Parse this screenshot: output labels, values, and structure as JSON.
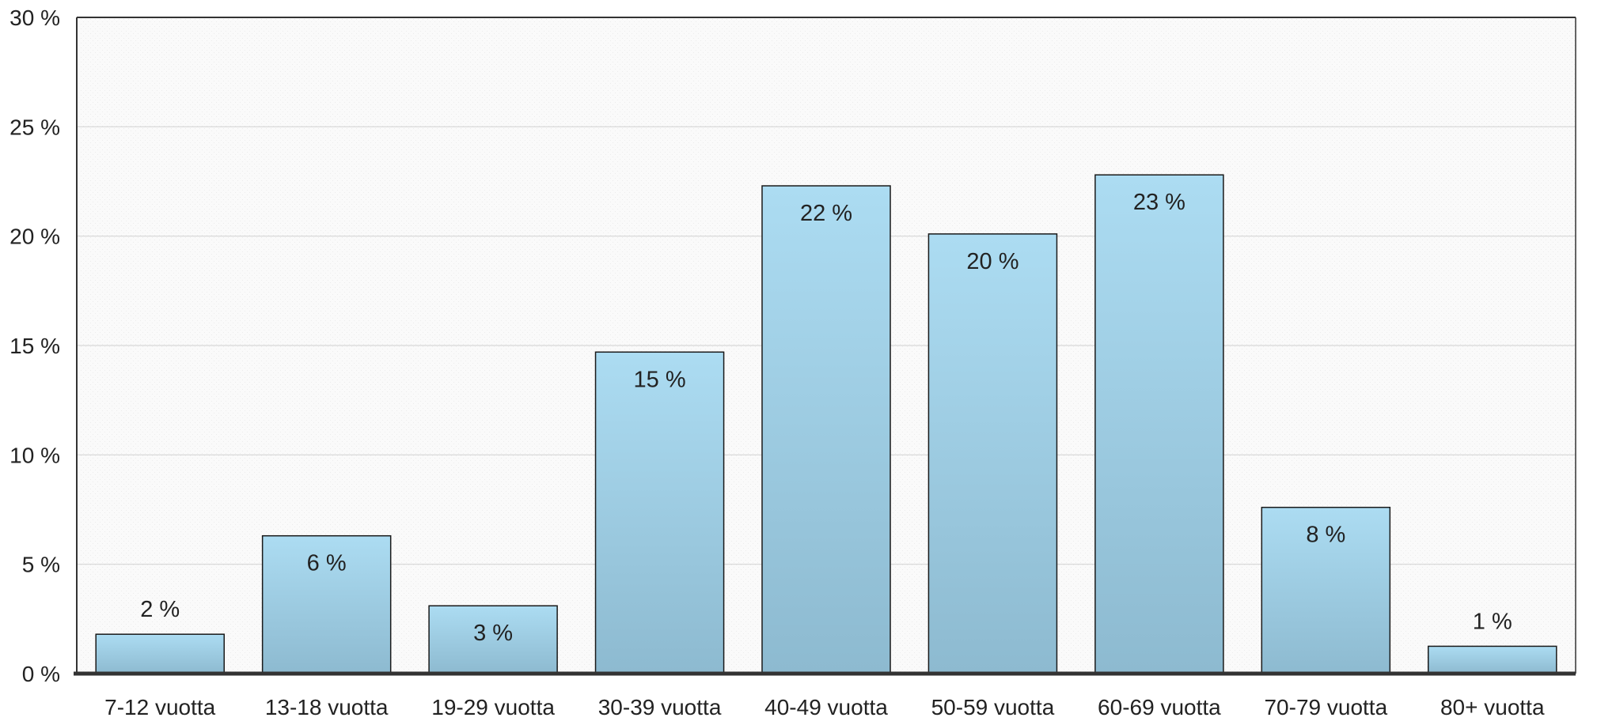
{
  "chart_data": {
    "type": "bar",
    "categories": [
      "7-12 vuotta",
      "13-18 vuotta",
      "19-29 vuotta",
      "30-39 vuotta",
      "40-49 vuotta",
      "50-59 vuotta",
      "60-69 vuotta",
      "70-79 vuotta",
      "80+ vuotta"
    ],
    "values": [
      1.8,
      6.3,
      3.1,
      14.7,
      22.3,
      20.1,
      22.8,
      7.6,
      1.25
    ],
    "data_labels": [
      "2 %",
      "6 %",
      "3 %",
      "15 %",
      "22 %",
      "20 %",
      "23 %",
      "8 %",
      "1 %"
    ],
    "ylim": [
      0,
      30
    ],
    "yticks": [
      0,
      5,
      10,
      15,
      20,
      25,
      30
    ],
    "ytick_labels": [
      "0 %",
      "5 %",
      "10 %",
      "15 %",
      "20 %",
      "25 %",
      "30 %"
    ],
    "grid": true,
    "legend": "none",
    "colors": {
      "bar_top": "#acdcf2",
      "bar_bottom": "#8dbad0",
      "bar_stroke": "#1a1a1a",
      "grid": "#d6d6d6",
      "axis": "#333333",
      "plot_bg": "#f7f7f7"
    }
  }
}
